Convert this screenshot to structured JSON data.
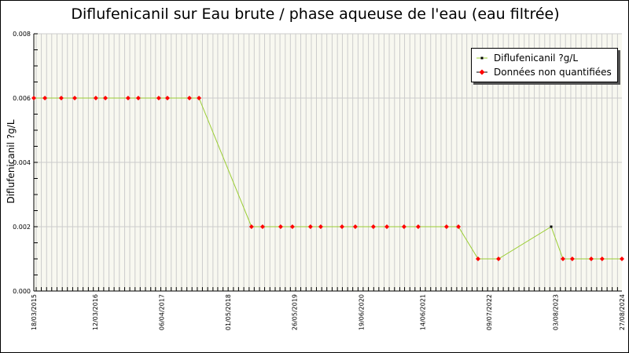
{
  "chart_data": {
    "type": "line",
    "title": "Diflufenicanil sur Eau brute / phase aqueuse de l'eau (eau filtrée)",
    "ylabel": "Diflufenicanil ?g/L",
    "xlabel": "",
    "ylim": [
      0,
      0.008
    ],
    "xlim": [
      "2015-03-18",
      "2024-08-27"
    ],
    "yticks": [
      "0.000",
      "0.002",
      "0.004",
      "0.006",
      "0.008"
    ],
    "xticks": [
      {
        "date": "2015-03-18",
        "label": "18/03/2015"
      },
      {
        "date": "2016-03-12",
        "label": "12/03/2016"
      },
      {
        "date": "2017-04-06",
        "label": "06/04/2017"
      },
      {
        "date": "2018-05-01",
        "label": "01/05/2018"
      },
      {
        "date": "2019-05-26",
        "label": "26/05/2019"
      },
      {
        "date": "2020-06-19",
        "label": "19/06/2020"
      },
      {
        "date": "2021-06-14",
        "label": "14/06/2021"
      },
      {
        "date": "2022-07-09",
        "label": "09/07/2022"
      },
      {
        "date": "2023-08-03",
        "label": "03/08/2023"
      },
      {
        "date": "2024-08-27",
        "label": "27/08/2024"
      }
    ],
    "grid": true,
    "legend_position": "top-right",
    "series": [
      {
        "name": "Diflufenicanil ?g/L",
        "line_color": "#9acd32",
        "points": [
          {
            "x": "2015-03-18",
            "y": 0.006,
            "q": false
          },
          {
            "x": "2015-05-22",
            "y": 0.006,
            "q": false
          },
          {
            "x": "2015-08-26",
            "y": 0.006,
            "q": false
          },
          {
            "x": "2015-11-13",
            "y": 0.006,
            "q": false
          },
          {
            "x": "2016-03-16",
            "y": 0.006,
            "q": false
          },
          {
            "x": "2016-05-11",
            "y": 0.006,
            "q": false
          },
          {
            "x": "2016-09-21",
            "y": 0.006,
            "q": false
          },
          {
            "x": "2016-11-20",
            "y": 0.006,
            "q": false
          },
          {
            "x": "2017-03-20",
            "y": 0.006,
            "q": false
          },
          {
            "x": "2017-05-10",
            "y": 0.006,
            "q": false
          },
          {
            "x": "2017-09-16",
            "y": 0.006,
            "q": false
          },
          {
            "x": "2017-11-11",
            "y": 0.006,
            "q": false
          },
          {
            "x": "2018-09-15",
            "y": 0.002,
            "q": false
          },
          {
            "x": "2018-11-19",
            "y": 0.002,
            "q": false
          },
          {
            "x": "2019-03-05",
            "y": 0.002,
            "q": false
          },
          {
            "x": "2019-05-13",
            "y": 0.002,
            "q": false
          },
          {
            "x": "2019-08-27",
            "y": 0.002,
            "q": false
          },
          {
            "x": "2019-10-26",
            "y": 0.002,
            "q": false
          },
          {
            "x": "2020-02-28",
            "y": 0.002,
            "q": false
          },
          {
            "x": "2020-05-16",
            "y": 0.002,
            "q": false
          },
          {
            "x": "2020-08-30",
            "y": 0.002,
            "q": false
          },
          {
            "x": "2020-11-17",
            "y": 0.002,
            "q": false
          },
          {
            "x": "2021-02-26",
            "y": 0.002,
            "q": false
          },
          {
            "x": "2021-05-20",
            "y": 0.002,
            "q": false
          },
          {
            "x": "2021-11-02",
            "y": 0.002,
            "q": false
          },
          {
            "x": "2022-01-11",
            "y": 0.002,
            "q": false
          },
          {
            "x": "2022-05-06",
            "y": 0.001,
            "q": false
          },
          {
            "x": "2022-09-03",
            "y": 0.001,
            "q": false
          },
          {
            "x": "2023-07-09",
            "y": 0.002,
            "q": true
          },
          {
            "x": "2023-09-16",
            "y": 0.001,
            "q": false
          },
          {
            "x": "2023-11-10",
            "y": 0.001,
            "q": false
          },
          {
            "x": "2024-02-29",
            "y": 0.001,
            "q": false
          },
          {
            "x": "2024-05-03",
            "y": 0.001,
            "q": false
          },
          {
            "x": "2024-08-27",
            "y": 0.001,
            "q": false
          }
        ]
      }
    ],
    "legend": [
      {
        "label": "Diflufenicanil ?g/L",
        "marker_color": "#000000"
      },
      {
        "label": "Données non quantifiées",
        "marker_color": "#ff0000"
      }
    ],
    "colors": {
      "plot_bg": "#f8f8f0",
      "grid": "#cccccc",
      "line": "#9acd32",
      "non_quantified": "#ff0000",
      "quantified": "#000000"
    }
  }
}
